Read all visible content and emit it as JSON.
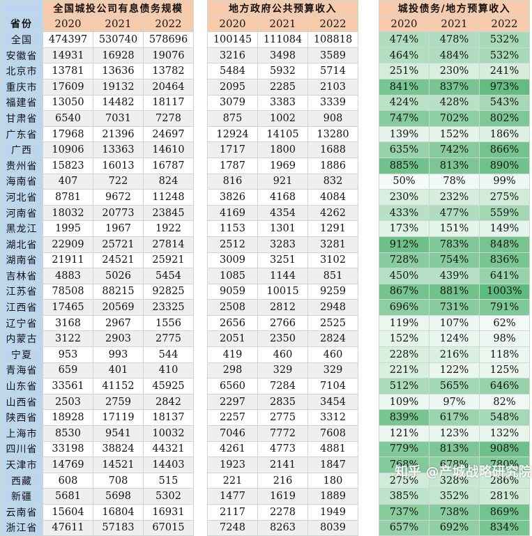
{
  "table": {
    "province_header": "省份",
    "years": [
      "2020",
      "2021",
      "2022"
    ],
    "section_titles": {
      "debt": "全国城投公司有息债务规模",
      "revenue": "地方政府公共预算收入",
      "ratio": "城投债务/地方预算收入"
    },
    "rows": [
      {
        "province": "全国",
        "debt": [
          "474397",
          "530740",
          "578696"
        ],
        "revenue": [
          "100145",
          "111084",
          "108818"
        ],
        "ratio": [
          "474%",
          "478%",
          "532%"
        ]
      },
      {
        "province": "安徽省",
        "debt": [
          "14931",
          "16928",
          "19076"
        ],
        "revenue": [
          "3216",
          "3498",
          "3589"
        ],
        "ratio": [
          "464%",
          "484%",
          "532%"
        ]
      },
      {
        "province": "北京市",
        "debt": [
          "13781",
          "13636",
          "13782"
        ],
        "revenue": [
          "5484",
          "5932",
          "5714"
        ],
        "ratio": [
          "251%",
          "230%",
          "241%"
        ]
      },
      {
        "province": "重庆市",
        "debt": [
          "17609",
          "19132",
          "20464"
        ],
        "revenue": [
          "2095",
          "2285",
          "2103"
        ],
        "ratio": [
          "841%",
          "837%",
          "973%"
        ]
      },
      {
        "province": "福建省",
        "debt": [
          "13050",
          "14482",
          "18117"
        ],
        "revenue": [
          "3079",
          "3383",
          "3339"
        ],
        "ratio": [
          "424%",
          "428%",
          "543%"
        ]
      },
      {
        "province": "甘肃省",
        "debt": [
          "6540",
          "7031",
          "7278"
        ],
        "revenue": [
          "875",
          "1002",
          "908"
        ],
        "ratio": [
          "747%",
          "702%",
          "802%"
        ]
      },
      {
        "province": "广东省",
        "debt": [
          "17968",
          "21396",
          "24697"
        ],
        "revenue": [
          "12924",
          "14105",
          "13280"
        ],
        "ratio": [
          "139%",
          "152%",
          "186%"
        ]
      },
      {
        "province": "广西",
        "debt": [
          "10906",
          "13363",
          "14610"
        ],
        "revenue": [
          "1717",
          "1800",
          "1688"
        ],
        "ratio": [
          "635%",
          "742%",
          "866%"
        ]
      },
      {
        "province": "贵州省",
        "debt": [
          "15823",
          "16013",
          "16787"
        ],
        "revenue": [
          "1787",
          "1969",
          "1886"
        ],
        "ratio": [
          "885%",
          "813%",
          "890%"
        ]
      },
      {
        "province": "海南省",
        "debt": [
          "407",
          "722",
          "824"
        ],
        "revenue": [
          "816",
          "921",
          "832"
        ],
        "ratio": [
          "50%",
          "78%",
          "99%"
        ]
      },
      {
        "province": "河北省",
        "debt": [
          "8781",
          "9672",
          "11248"
        ],
        "revenue": [
          "3826",
          "4168",
          "4084"
        ],
        "ratio": [
          "230%",
          "232%",
          "275%"
        ]
      },
      {
        "province": "河南省",
        "debt": [
          "18032",
          "20773",
          "23845"
        ],
        "revenue": [
          "4169",
          "4354",
          "4262"
        ],
        "ratio": [
          "433%",
          "477%",
          "559%"
        ]
      },
      {
        "province": "黑龙江",
        "debt": [
          "1995",
          "1967",
          "1922"
        ],
        "revenue": [
          "1153",
          "1301",
          "1291"
        ],
        "ratio": [
          "173%",
          "151%",
          "149%"
        ]
      },
      {
        "province": "湖北省",
        "debt": [
          "22909",
          "25721",
          "27814"
        ],
        "revenue": [
          "2512",
          "3283",
          "3281"
        ],
        "ratio": [
          "912%",
          "783%",
          "848%"
        ]
      },
      {
        "province": "湖南省",
        "debt": [
          "21911",
          "24521",
          "25921"
        ],
        "revenue": [
          "3009",
          "3251",
          "3102"
        ],
        "ratio": [
          "728%",
          "754%",
          "836%"
        ]
      },
      {
        "province": "吉林省",
        "debt": [
          "4883",
          "5026",
          "5454"
        ],
        "revenue": [
          "1085",
          "1144",
          "851"
        ],
        "ratio": [
          "450%",
          "439%",
          "641%"
        ]
      },
      {
        "province": "江苏省",
        "debt": [
          "78508",
          "88215",
          "92825"
        ],
        "revenue": [
          "9059",
          "10015",
          "9259"
        ],
        "ratio": [
          "867%",
          "881%",
          "1003%"
        ]
      },
      {
        "province": "江西省",
        "debt": [
          "17465",
          "20569",
          "23325"
        ],
        "revenue": [
          "2508",
          "2812",
          "2948"
        ],
        "ratio": [
          "696%",
          "731%",
          "791%"
        ]
      },
      {
        "province": "辽宁省",
        "debt": [
          "3168",
          "2967",
          "1556"
        ],
        "revenue": [
          "2656",
          "2766",
          "2525"
        ],
        "ratio": [
          "119%",
          "107%",
          "62%"
        ]
      },
      {
        "province": "内蒙古",
        "debt": [
          "3122",
          "2903",
          "2775"
        ],
        "revenue": [
          "2051",
          "2350",
          "2824"
        ],
        "ratio": [
          "152%",
          "124%",
          "98%"
        ]
      },
      {
        "province": "宁夏",
        "debt": [
          "953",
          "993",
          "544"
        ],
        "revenue": [
          "419",
          "460",
          "460"
        ],
        "ratio": [
          "228%",
          "216%",
          "118%"
        ]
      },
      {
        "province": "青海省",
        "debt": [
          "659",
          "401",
          "410"
        ],
        "revenue": [
          "298",
          "329",
          "329"
        ],
        "ratio": [
          "221%",
          "122%",
          "125%"
        ]
      },
      {
        "province": "山东省",
        "debt": [
          "33561",
          "41152",
          "45925"
        ],
        "revenue": [
          "6560",
          "7284",
          "7104"
        ],
        "ratio": [
          "512%",
          "565%",
          "646%"
        ]
      },
      {
        "province": "山西省",
        "debt": [
          "2503",
          "2759",
          "2842"
        ],
        "revenue": [
          "2297",
          "2835",
          "3454"
        ],
        "ratio": [
          "109%",
          "97%",
          "82%"
        ]
      },
      {
        "province": "陕西省",
        "debt": [
          "18928",
          "17119",
          "18137"
        ],
        "revenue": [
          "2257",
          "2775",
          "3312"
        ],
        "ratio": [
          "839%",
          "617%",
          "548%"
        ]
      },
      {
        "province": "上海市",
        "debt": [
          "8530",
          "9541",
          "10032"
        ],
        "revenue": [
          "7046",
          "7772",
          "7608"
        ],
        "ratio": [
          "121%",
          "123%",
          "132%"
        ]
      },
      {
        "province": "四川省",
        "debt": [
          "33198",
          "38824",
          "44321"
        ],
        "revenue": [
          "4261",
          "4773",
          "4881"
        ],
        "ratio": [
          "779%",
          "813%",
          "908%"
        ]
      },
      {
        "province": "天津市",
        "debt": [
          "14769",
          "14521",
          "14403"
        ],
        "revenue": [
          "1923",
          "2141",
          "1847"
        ],
        "ratio": [
          "768%",
          "678%",
          "780%"
        ]
      },
      {
        "province": "西藏",
        "debt": [
          "608",
          "708",
          "515"
        ],
        "revenue": [
          "221",
          "216",
          "180"
        ],
        "ratio": [
          "275%",
          "328%",
          "286%"
        ]
      },
      {
        "province": "新疆",
        "debt": [
          "5681",
          "5698",
          "5302"
        ],
        "revenue": [
          "1477",
          "1619",
          "1889"
        ],
        "ratio": [
          "385%",
          "352%",
          "281%"
        ]
      },
      {
        "province": "云南省",
        "debt": [
          "15604",
          "16804",
          "16931"
        ],
        "revenue": [
          "2117",
          "2278",
          "1949"
        ],
        "ratio": [
          "737%",
          "738%",
          "869%"
        ]
      },
      {
        "province": "浙江省",
        "debt": [
          "47611",
          "57183",
          "67015"
        ],
        "revenue": [
          "7248",
          "8263",
          "8039"
        ],
        "ratio": [
          "657%",
          "692%",
          "834%"
        ]
      }
    ]
  },
  "colors": {
    "header_fill": "#f8cbad",
    "province_fill": "#bcd6ee",
    "ratio_scale_low": "#ffffff",
    "ratio_scale_high": "#5fba7d"
  },
  "watermark": {
    "text": "知乎 @产城战略研究院"
  }
}
